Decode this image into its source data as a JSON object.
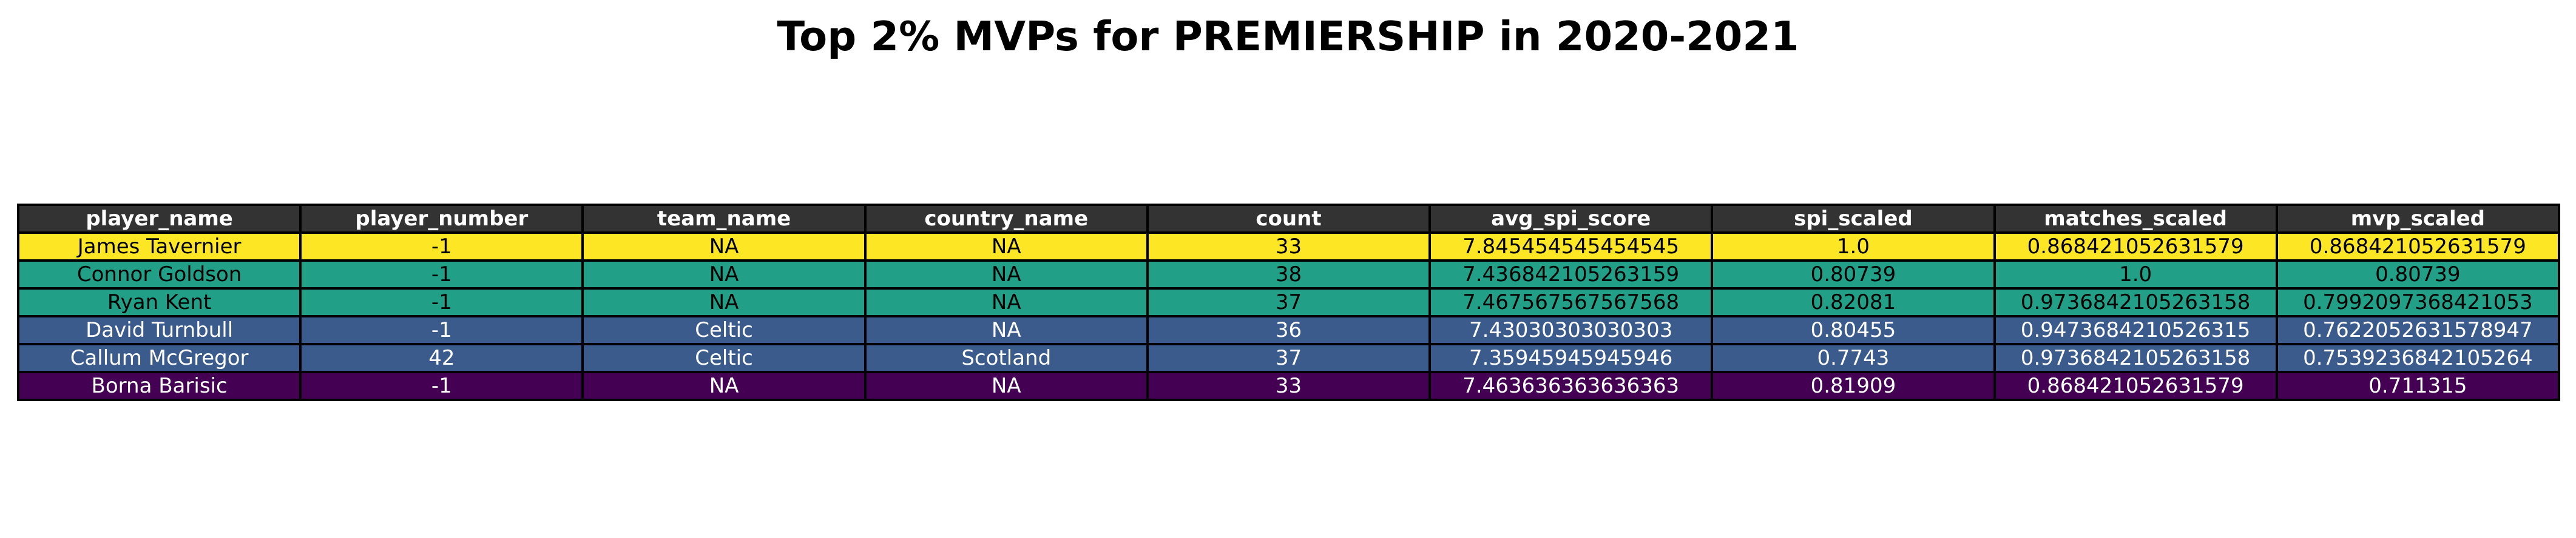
{
  "chart_data": {
    "type": "table",
    "title": "Top 2% MVPs for PREMIERSHIP in 2020-2021",
    "columns": [
      "player_name",
      "player_number",
      "team_name",
      "country_name",
      "count",
      "avg_spi_score",
      "spi_scaled",
      "matches_scaled",
      "mvp_scaled"
    ],
    "header_color": "#333333",
    "rows": [
      {
        "color": "#fde725",
        "text_color": "#000000",
        "cells": [
          "James Tavernier",
          "-1",
          "NA",
          "NA",
          "33",
          "7.845454545454545",
          "1.0",
          "0.868421052631579",
          "0.868421052631579"
        ]
      },
      {
        "color": "#21a087",
        "text_color": "#000000",
        "cells": [
          "Connor Goldson",
          "-1",
          "NA",
          "NA",
          "38",
          "7.436842105263159",
          "0.80739",
          "1.0",
          "0.80739"
        ]
      },
      {
        "color": "#21a087",
        "text_color": "#000000",
        "cells": [
          "Ryan Kent",
          "-1",
          "NA",
          "NA",
          "37",
          "7.467567567567568",
          "0.82081",
          "0.9736842105263158",
          "0.7992097368421053"
        ]
      },
      {
        "color": "#3b5b8c",
        "text_color": "#ffffff",
        "cells": [
          "David Turnbull",
          "-1",
          "Celtic",
          "NA",
          "36",
          "7.43030303030303",
          "0.80455",
          "0.9473684210526315",
          "0.7622052631578947"
        ]
      },
      {
        "color": "#3b5b8c",
        "text_color": "#ffffff",
        "cells": [
          "Callum McGregor",
          "42",
          "Celtic",
          "Scotland",
          "37",
          "7.35945945945946",
          "0.7743",
          "0.9736842105263158",
          "0.7539236842105264"
        ]
      },
      {
        "color": "#440154",
        "text_color": "#ffffff",
        "cells": [
          "Borna Barisic",
          "-1",
          "NA",
          "NA",
          "33",
          "7.463636363636363",
          "0.81909",
          "0.868421052631579",
          "0.711315"
        ]
      }
    ]
  }
}
